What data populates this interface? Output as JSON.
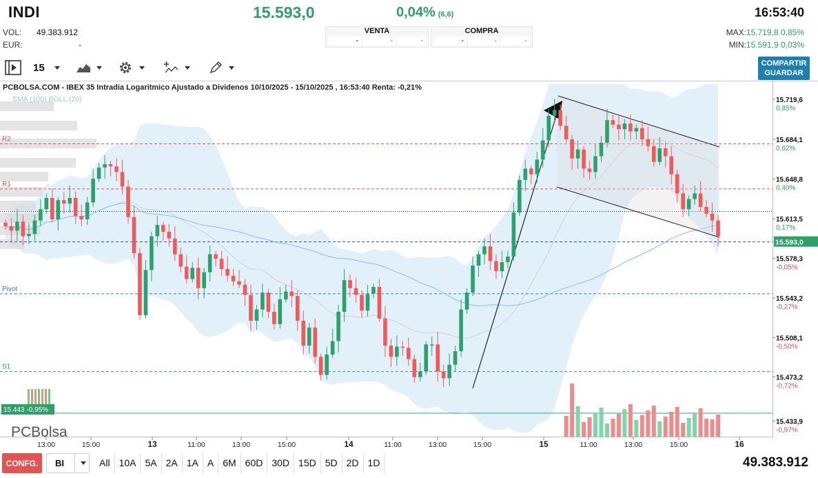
{
  "header": {
    "symbol": "INDI",
    "last": "15.593,0",
    "change_pct": "0,04%",
    "change_abs": "(6,6)",
    "time": "16:53:40",
    "vol_label": "VOL:",
    "vol_value": "49.383.912",
    "eur_label": "EUR:",
    "eur_value": "-",
    "max_label": "MAX:",
    "max_value": "15.719,8",
    "max_pct": "0,85%",
    "min_label": "MIN:",
    "min_value": "15.591,9",
    "min_pct": "0,03%"
  },
  "book": {
    "venta_label": "VENTA",
    "compra_label": "COMPRA",
    "cells": [
      "-",
      "-",
      "-",
      "-",
      "-",
      "-"
    ]
  },
  "toolbar": {
    "interval": "15",
    "share_label_1": "COMPARTIR",
    "share_label_2": "GUARDAR",
    "icons": [
      "play-panel-icon",
      "area-chart-icon",
      "gear-icon",
      "indicators-icon",
      "pencil-icon"
    ]
  },
  "chart": {
    "header_text": "PCBOLSA.COM - IBEX 35 Intradia Logaritmico Ajustado a Dividenos 10/10/2025 - 15/10/2025 , 16:53:40 Renta: -0,21%",
    "indicators_text": "SMA (100)  BOLL (20)",
    "logo": "PCBolsa",
    "levels": [
      {
        "label": "R2",
        "price": 15680,
        "color": "#e05252"
      },
      {
        "label": "R1",
        "price": 15640,
        "color": "#e05252"
      },
      {
        "label": "Pivot",
        "price": 15547,
        "color": "#3a7fc0"
      },
      {
        "label": "S1",
        "price": 15478,
        "color": "#2ea06b"
      }
    ],
    "last_price_tag": "15.593,0",
    "vol_tag": "15.443 -0,95%",
    "y_ticks": [
      {
        "price": "15.719,6",
        "pct": "0,85%"
      },
      {
        "price": "15.684,1",
        "pct": "0,62%"
      },
      {
        "price": "15.648,8",
        "pct": "0,40%"
      },
      {
        "price": "15.613,5",
        "pct": "0,17%"
      },
      {
        "price": "15.578,3",
        "pct": "-0,05%"
      },
      {
        "price": "15.543,2",
        "pct": "-0,27%"
      },
      {
        "price": "15.508,1",
        "pct": "-0,50%"
      },
      {
        "price": "15.473,2",
        "pct": "-0,72%"
      },
      {
        "price": "15.433,9",
        "pct": "-0,97%"
      }
    ],
    "x_ticks": [
      "13:00",
      "15:00",
      "13",
      "11:00",
      "13:00",
      "15:00",
      "14",
      "11:00",
      "13:00",
      "15:00",
      "15",
      "11:00",
      "13:00",
      "15:00",
      "16"
    ]
  },
  "chart_data": {
    "type": "candlestick",
    "title": "PCBOLSA.COM - IBEX 35 Intradia Logaritmico Ajustado a Dividenos 10/10/2025 - 15/10/2025 , 16:53:40 Renta: -0,21%",
    "ylim": [
      15430,
      15725
    ],
    "days": [
      "13",
      "14",
      "15",
      "16"
    ],
    "closes": [
      15607,
      15603,
      15611,
      15598,
      15600,
      15612,
      15622,
      15632,
      15613,
      15630,
      15627,
      15632,
      15616,
      15613,
      15628,
      15649,
      15659,
      15662,
      15660,
      15655,
      15642,
      15615,
      15583,
      15528,
      15568,
      15598,
      15608,
      15602,
      15596,
      15582,
      15571,
      15560,
      15570,
      15552,
      15566,
      15582,
      15578,
      15569,
      15563,
      15558,
      15555,
      15546,
      15523,
      15533,
      15548,
      15531,
      15520,
      15542,
      15549,
      15545,
      15523,
      15501,
      15517,
      15491,
      15475,
      15493,
      15505,
      15531,
      15559,
      15552,
      15546,
      15532,
      15547,
      15553,
      15525,
      15501,
      15491,
      15500,
      15499,
      15489,
      15473,
      15478,
      15502,
      15502,
      15478,
      15472,
      15484,
      15496,
      15533,
      15548,
      15572,
      15582,
      15589,
      15576,
      15567,
      15575,
      15580,
      15619,
      15648,
      15658,
      15653,
      15666,
      15683,
      15705,
      15710,
      15696,
      15684,
      15667,
      15675,
      15658,
      15655,
      15669,
      15681,
      15701,
      15697,
      15693,
      15698,
      15691,
      15694,
      15684,
      15678,
      15664,
      15676,
      15669,
      15653,
      15636,
      15622,
      15631,
      15636,
      15624,
      15618,
      15612,
      15598
    ]
  },
  "bottom": {
    "config_label": "CONFG.",
    "select_value": "BI",
    "ranges": [
      "All",
      "10A",
      "5A",
      "2A",
      "1A",
      "A",
      "6M",
      "60D",
      "30D",
      "15D",
      "5D",
      "2D",
      "1D"
    ],
    "total_volume": "49.383.912"
  }
}
